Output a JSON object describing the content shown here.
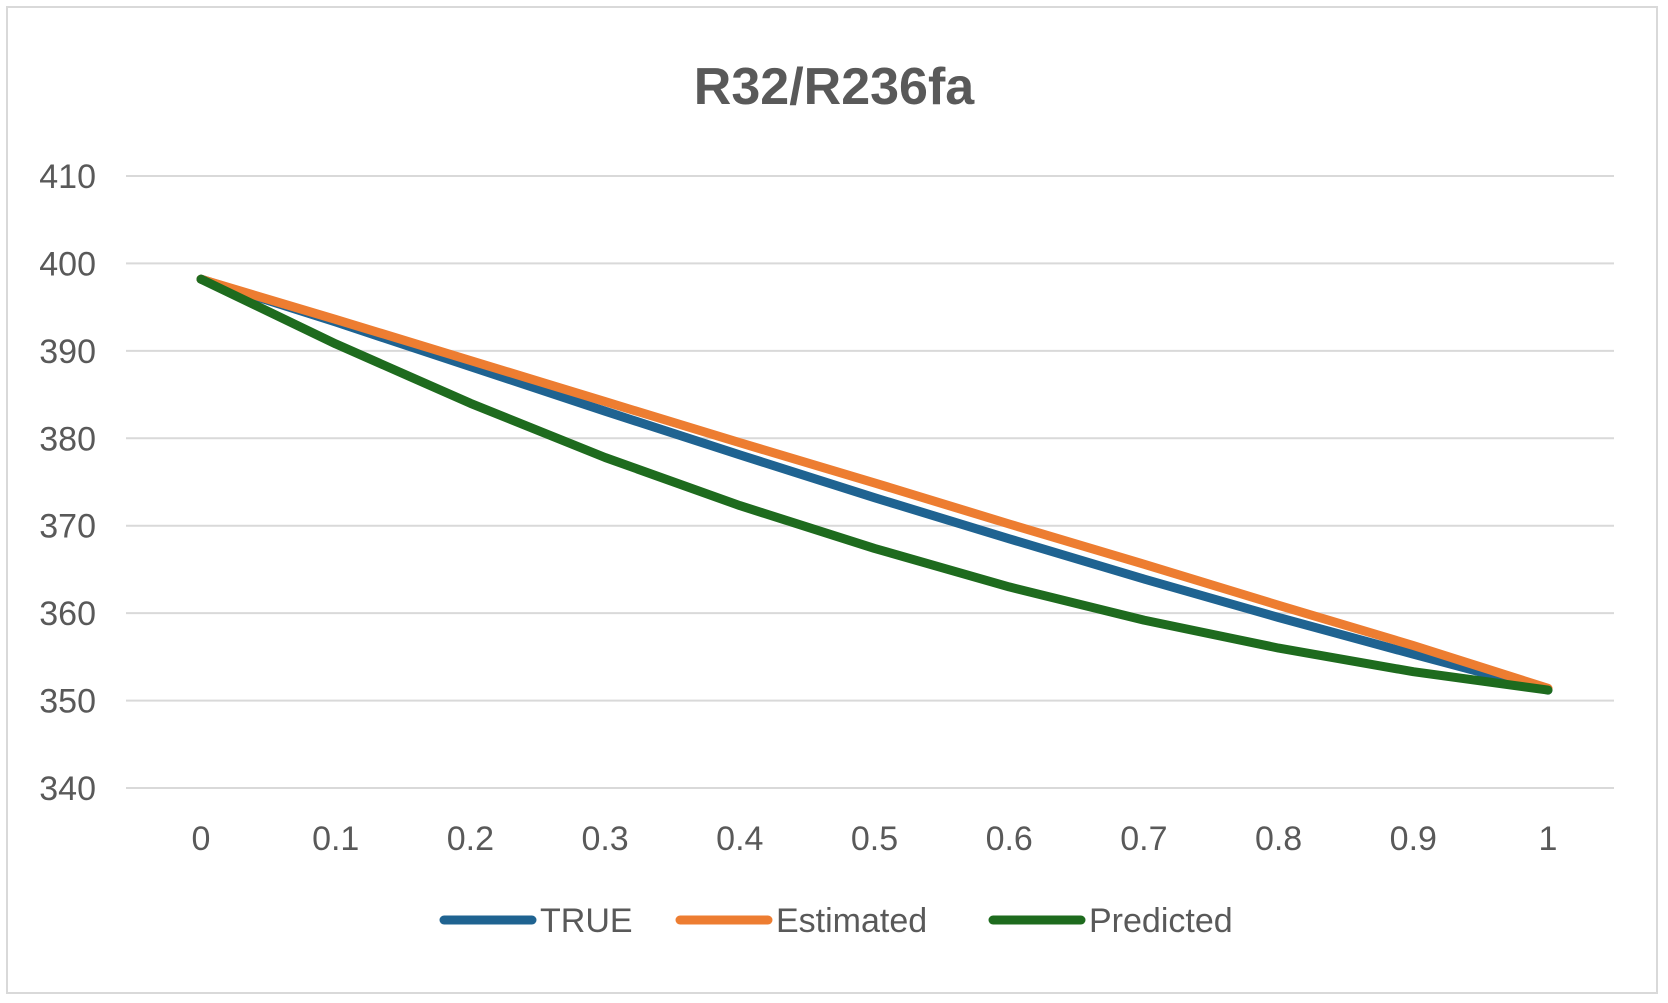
{
  "chart_data": {
    "type": "line",
    "title": "R32/R236fa",
    "xlabel": "",
    "ylabel": "",
    "x": [
      0,
      0.1,
      0.2,
      0.3,
      0.4,
      0.5,
      0.6,
      0.7,
      0.8,
      0.9,
      1
    ],
    "x_tick_labels": [
      "0",
      "0.1",
      "0.2",
      "0.3",
      "0.4",
      "0.5",
      "0.6",
      "0.7",
      "0.8",
      "0.9",
      "1"
    ],
    "ylim": [
      340,
      410
    ],
    "y_ticks": [
      340,
      350,
      360,
      370,
      380,
      390,
      400,
      410
    ],
    "grid": true,
    "legend_position": "bottom",
    "series": [
      {
        "name": "TRUE",
        "color": "#1f6391",
        "values": [
          398.2,
          393.3,
          388.2,
          383.1,
          378.1,
          373.2,
          368.5,
          363.9,
          359.5,
          355.3,
          351.2
        ]
      },
      {
        "name": "Estimated",
        "color": "#ed7d31",
        "values": [
          398.2,
          393.6,
          388.9,
          384.2,
          379.5,
          374.9,
          370.2,
          365.6,
          360.9,
          356.3,
          351.4
        ]
      },
      {
        "name": "Predicted",
        "color": "#1e6b1e",
        "values": [
          398.2,
          390.8,
          384.0,
          377.8,
          372.3,
          367.4,
          363.0,
          359.2,
          356.0,
          353.3,
          351.2
        ]
      }
    ]
  }
}
